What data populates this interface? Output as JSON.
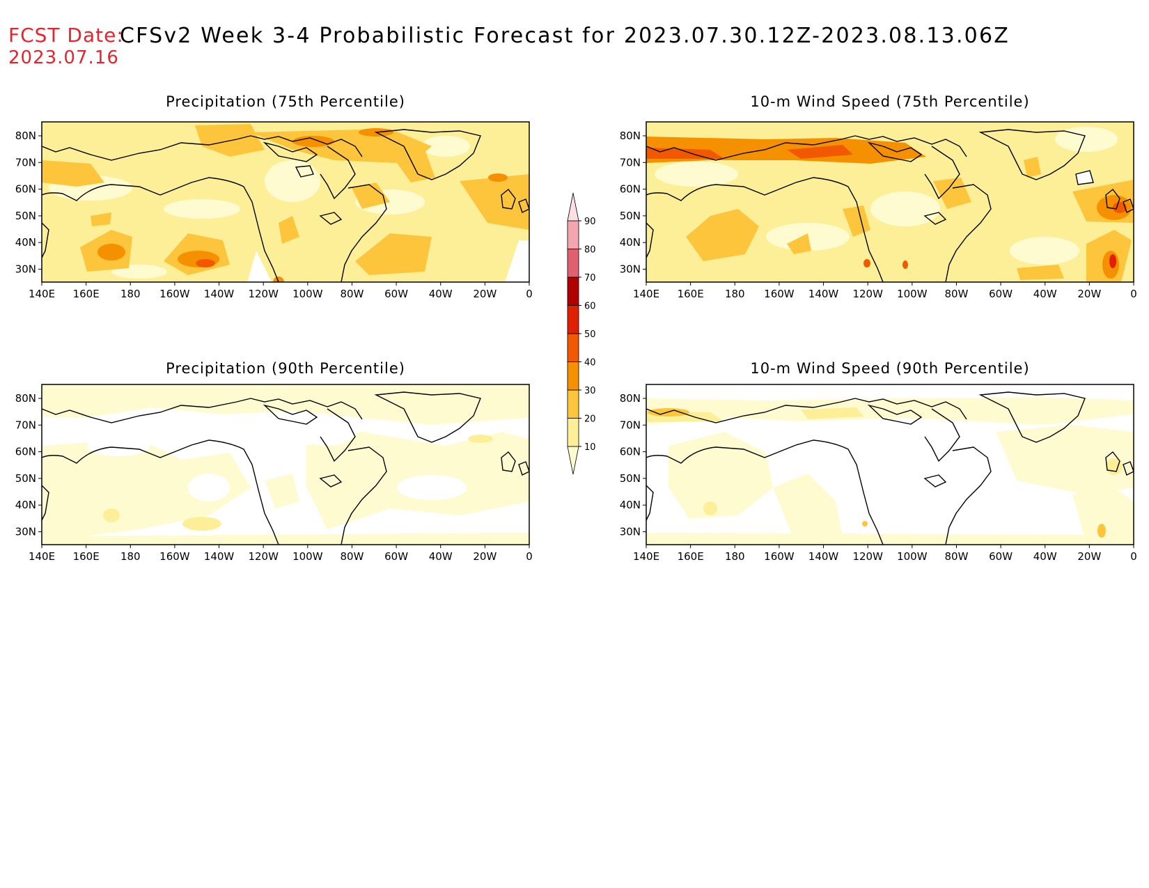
{
  "header": {
    "fcst_label": "FCST Date:",
    "fcst_date": "2023.07.16",
    "title": "CFSv2 Week 3-4 Probabilistic Forecast for 2023.07.30.12Z-2023.08.13.06Z"
  },
  "axes": {
    "lon_ticks": [
      "140E",
      "160E",
      "180",
      "160W",
      "140W",
      "120W",
      "100W",
      "80W",
      "60W",
      "40W",
      "20W",
      "0"
    ],
    "lat_ticks": [
      "80N",
      "70N",
      "60N",
      "50N",
      "40N",
      "30N"
    ]
  },
  "colorbar": {
    "ticks": [
      "10",
      "20",
      "30",
      "40",
      "50",
      "60",
      "70",
      "80",
      "90"
    ],
    "colors": [
      "#fffbd0",
      "#fdee98",
      "#fdc53b",
      "#f59000",
      "#f25800",
      "#e02000",
      "#b00000",
      "#e06070",
      "#f4a6b0",
      "#fde0e4"
    ]
  },
  "panels": [
    {
      "id": "precip75",
      "title": "Precipitation (75th Percentile)"
    },
    {
      "id": "wind75",
      "title": "10-m Wind Speed (75th Percentile)"
    },
    {
      "id": "precip90",
      "title": "Precipitation (90th Percentile)"
    },
    {
      "id": "wind90",
      "title": "10-m Wind Speed (90th Percentile)"
    }
  ]
}
